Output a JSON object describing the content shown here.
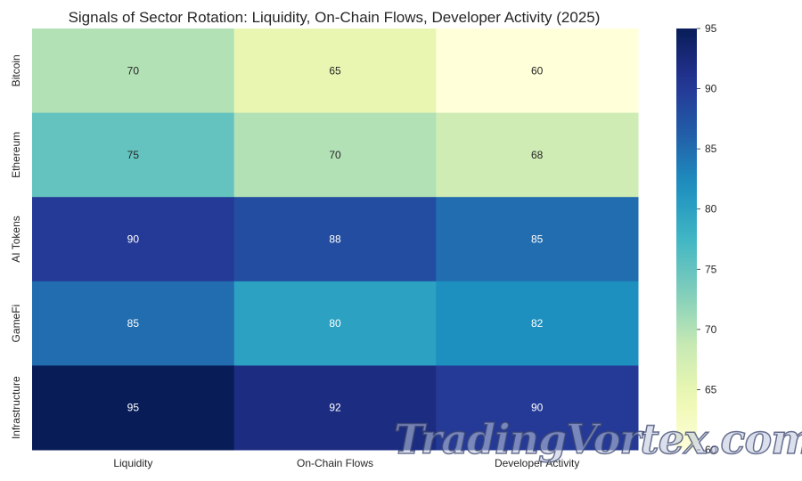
{
  "chart_data": {
    "type": "heatmap",
    "title": "Signals of Sector Rotation: Liquidity, On-Chain Flows, Developer Activity (2025)",
    "xlabel": "",
    "ylabel": "",
    "x_categories": [
      "Liquidity",
      "On-Chain Flows",
      "Developer Activity"
    ],
    "y_categories": [
      "Bitcoin",
      "Ethereum",
      "AI Tokens",
      "GameFi",
      "Infrastructure"
    ],
    "values": [
      [
        70,
        65,
        60
      ],
      [
        75,
        70,
        68
      ],
      [
        90,
        88,
        85
      ],
      [
        85,
        80,
        82
      ],
      [
        95,
        92,
        90
      ]
    ],
    "annotated": true,
    "colormap": "YlGnBu",
    "colorbar": {
      "range": [
        60,
        95
      ],
      "ticks": [
        60,
        65,
        70,
        75,
        80,
        85,
        90,
        95
      ]
    },
    "grid": false
  },
  "watermark": "TradingVortex.com"
}
